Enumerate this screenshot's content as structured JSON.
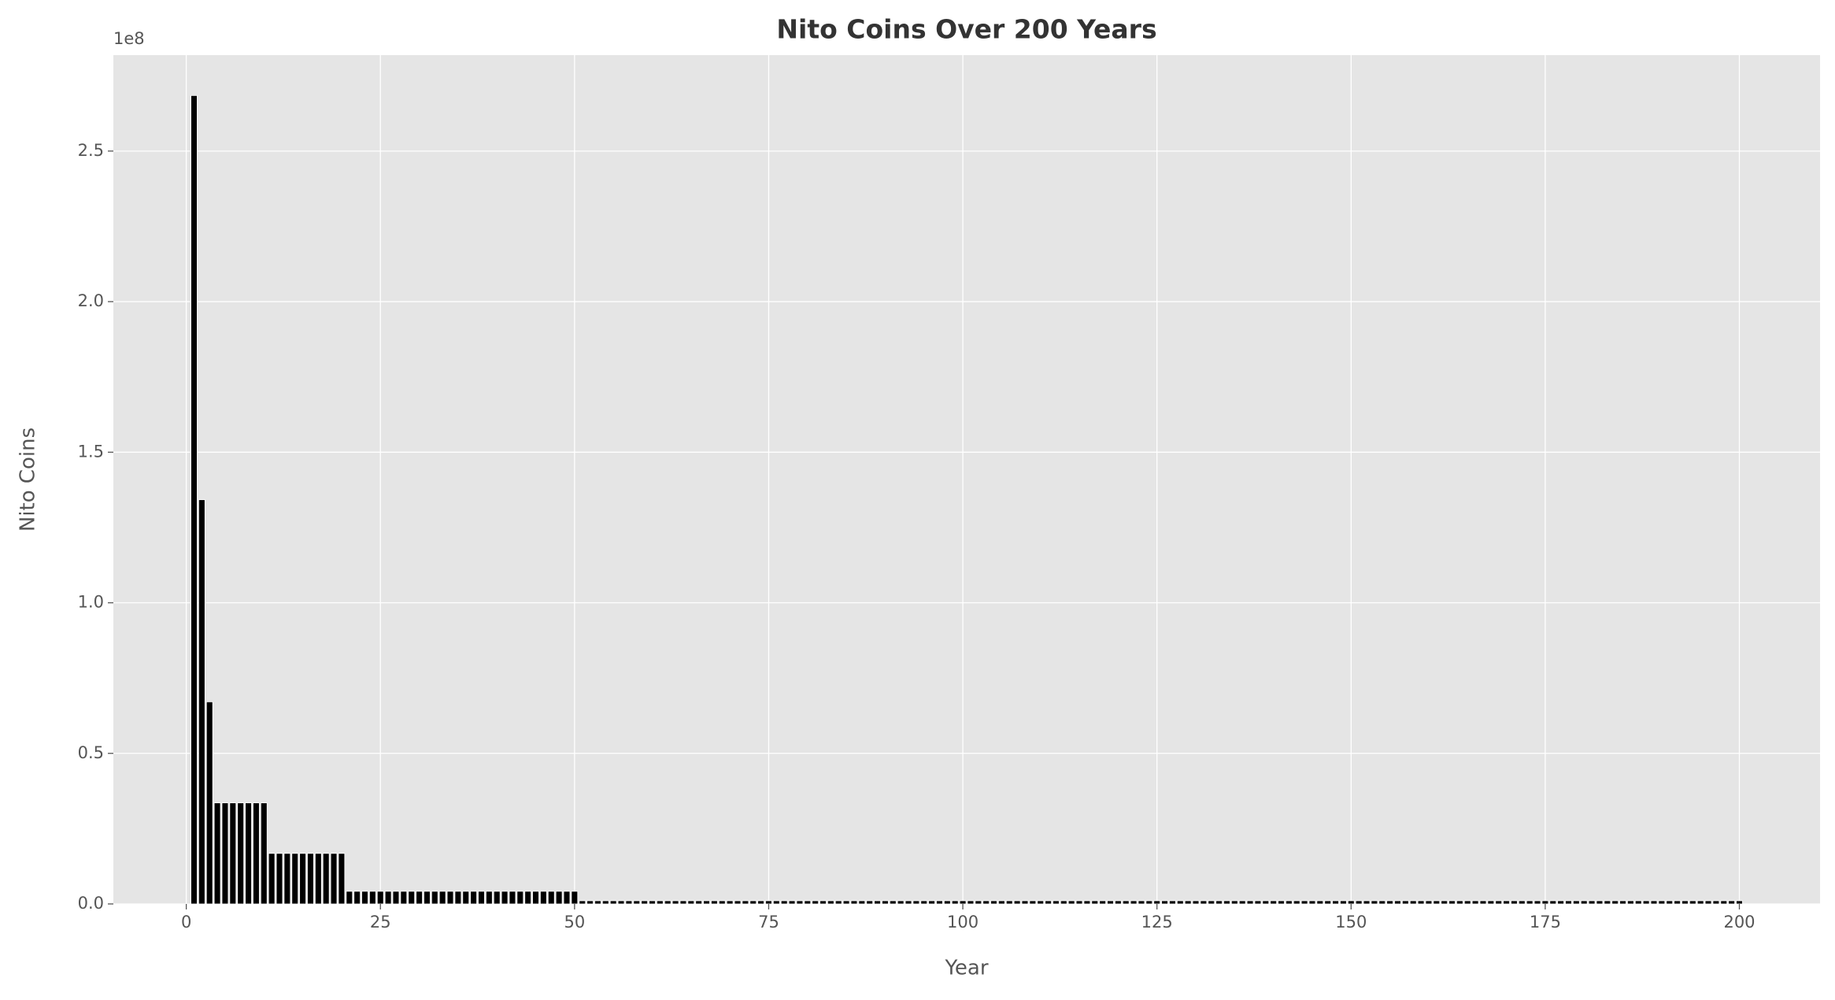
{
  "chart_data": {
    "type": "bar",
    "title": "Nito Coins Over 200 Years",
    "x_label": "Year",
    "y_label": "Nito Coins",
    "y_offset_label": "1e8",
    "color": "#000000",
    "edge_color": "#ffffff",
    "grid": true,
    "xlim": [
      -9.39,
      210.39
    ],
    "xticks": [
      0,
      25,
      50,
      75,
      100,
      125,
      150,
      175,
      200
    ],
    "ylim": [
      0,
      281857229
    ],
    "yticks": [
      {
        "value": 0,
        "label": "0.0"
      },
      {
        "value": 50000000,
        "label": "0.5"
      },
      {
        "value": 100000000,
        "label": "1.0"
      },
      {
        "value": 150000000,
        "label": "1.5"
      },
      {
        "value": 200000000,
        "label": "2.0"
      },
      {
        "value": 250000000,
        "label": "2.5"
      }
    ],
    "x": [
      1,
      2,
      3,
      4,
      5,
      6,
      7,
      8,
      9,
      10,
      11,
      12,
      13,
      14,
      15,
      16,
      17,
      18,
      19,
      20,
      21,
      22,
      23,
      24,
      25,
      26,
      27,
      28,
      29,
      30,
      31,
      32,
      33,
      34,
      35,
      36,
      37,
      38,
      39,
      40,
      41,
      42,
      43,
      44,
      45,
      46,
      47,
      48,
      49,
      50,
      51,
      52,
      53,
      54,
      55,
      56,
      57,
      58,
      59,
      60,
      61,
      62,
      63,
      64,
      65,
      66,
      67,
      68,
      69,
      70,
      71,
      72,
      73,
      74,
      75,
      76,
      77,
      78,
      79,
      80,
      81,
      82,
      83,
      84,
      85,
      86,
      87,
      88,
      89,
      90,
      91,
      92,
      93,
      94,
      95,
      96,
      97,
      98,
      99,
      100,
      101,
      102,
      103,
      104,
      105,
      106,
      107,
      108,
      109,
      110,
      111,
      112,
      113,
      114,
      115,
      116,
      117,
      118,
      119,
      120,
      121,
      122,
      123,
      124,
      125,
      126,
      127,
      128,
      129,
      130,
      131,
      132,
      133,
      134,
      135,
      136,
      137,
      138,
      139,
      140,
      141,
      142,
      143,
      144,
      145,
      146,
      147,
      148,
      149,
      150,
      151,
      152,
      153,
      154,
      155,
      156,
      157,
      158,
      159,
      160,
      161,
      162,
      163,
      164,
      165,
      166,
      167,
      168,
      169,
      170,
      171,
      172,
      173,
      174,
      175,
      176,
      177,
      178,
      179,
      180,
      181,
      182,
      183,
      184,
      185,
      186,
      187,
      188,
      189,
      190,
      191,
      192,
      193,
      194,
      195,
      196,
      197,
      198,
      199,
      200
    ],
    "values": [
      268435456,
      134217728,
      67108864,
      33554432,
      33554432,
      33554432,
      33554432,
      33554432,
      33554432,
      33554432,
      16777216,
      16777216,
      16777216,
      16777216,
      16777216,
      16777216,
      16777216,
      16777216,
      16777216,
      16777216,
      4194304,
      4194304,
      4194304,
      4194304,
      4194304,
      4194304,
      4194304,
      4194304,
      4194304,
      4194304,
      4194304,
      4194304,
      4194304,
      4194304,
      4194304,
      4194304,
      4194304,
      4194304,
      4194304,
      4194304,
      4194304,
      4194304,
      4194304,
      4194304,
      4194304,
      4194304,
      4194304,
      4194304,
      4194304,
      4194304,
      1048576,
      1048576,
      1048576,
      1048576,
      1048576,
      1048576,
      1048576,
      1048576,
      1048576,
      1048576,
      1048576,
      1048576,
      1048576,
      1048576,
      1048576,
      1048576,
      1048576,
      1048576,
      1048576,
      1048576,
      1048576,
      1048576,
      1048576,
      1048576,
      1048576,
      1048576,
      1048576,
      1048576,
      1048576,
      1048576,
      1048576,
      1048576,
      1048576,
      1048576,
      1048576,
      1048576,
      1048576,
      1048576,
      1048576,
      1048576,
      1048576,
      1048576,
      1048576,
      1048576,
      1048576,
      1048576,
      1048576,
      1048576,
      1048576,
      1048576,
      1048576,
      1048576,
      1048576,
      1048576,
      1048576,
      1048576,
      1048576,
      1048576,
      1048576,
      1048576,
      1048576,
      1048576,
      1048576,
      1048576,
      1048576,
      1048576,
      1048576,
      1048576,
      1048576,
      1048576,
      1048576,
      1048576,
      1048576,
      1048576,
      1048576,
      1048576,
      1048576,
      1048576,
      1048576,
      1048576,
      1048576,
      1048576,
      1048576,
      1048576,
      1048576,
      1048576,
      1048576,
      1048576,
      1048576,
      1048576,
      1048576,
      1048576,
      1048576,
      1048576,
      1048576,
      1048576,
      1048576,
      1048576,
      1048576,
      1048576,
      1048576,
      1048576,
      1048576,
      1048576,
      1048576,
      1048576,
      1048576,
      1048576,
      1048576,
      1048576,
      1048576,
      1048576,
      1048576,
      1048576,
      1048576,
      1048576,
      1048576,
      1048576,
      1048576,
      1048576,
      1048576,
      1048576,
      1048576,
      1048576,
      1048576,
      1048576,
      1048576,
      1048576,
      1048576,
      1048576,
      1048576,
      1048576,
      1048576,
      1048576,
      1048576,
      1048576,
      1048576,
      1048576,
      1048576,
      1048576,
      1048576,
      1048576,
      1048576,
      1048576,
      1048576,
      1048576,
      1048576,
      1048576,
      1048576,
      1048576
    ]
  }
}
